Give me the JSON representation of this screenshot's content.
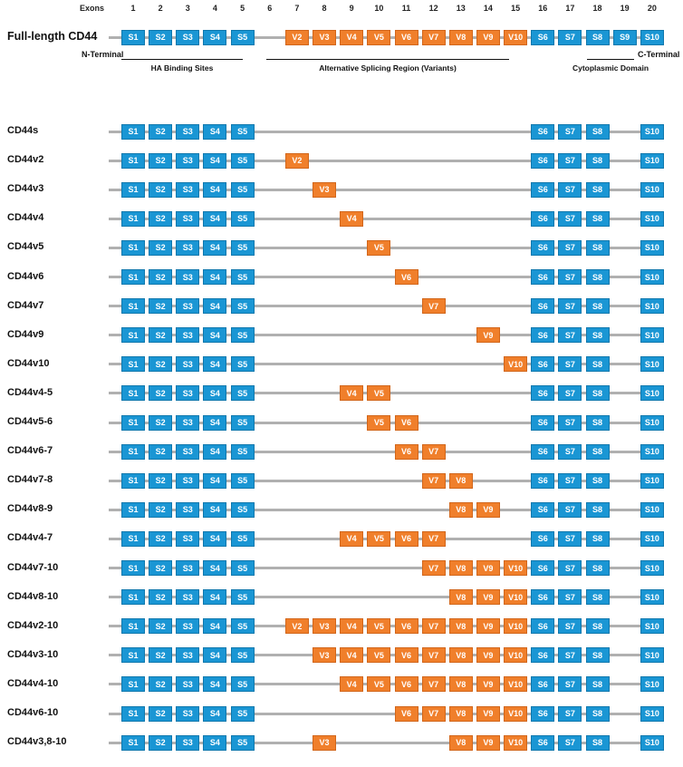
{
  "exons_label": "Exons",
  "exon_numbers": [
    "1",
    "2",
    "3",
    "4",
    "5",
    "6",
    "7",
    "8",
    "9",
    "10",
    "11",
    "12",
    "13",
    "14",
    "15",
    "16",
    "17",
    "18",
    "19",
    "20"
  ],
  "full_length": {
    "title": "Full-length CD44",
    "n_terminal": "N-Terminal",
    "c_terminal": "C-Terminal",
    "exons": [
      "S1",
      "S2",
      "S3",
      "S4",
      "S5",
      "V2",
      "V3",
      "V4",
      "V5",
      "V6",
      "V7",
      "V8",
      "V9",
      "V10",
      "S6",
      "S7",
      "S8",
      "S9",
      "S10"
    ]
  },
  "regions": {
    "ha_binding": "HA Binding Sites",
    "alt_splicing": "Alternative Splicing Region (Variants)",
    "cytoplasmic": "Cytoplasmic Domain"
  },
  "colors": {
    "standard": "#1a96d4",
    "variant": "#f07f2b",
    "track": "#b0b0b0"
  },
  "isoforms": [
    {
      "name": "CD44s",
      "exons": [
        "S1",
        "S2",
        "S3",
        "S4",
        "S5",
        "S6",
        "S7",
        "S8",
        "S10"
      ]
    },
    {
      "name": "CD44v2",
      "exons": [
        "S1",
        "S2",
        "S3",
        "S4",
        "S5",
        "V2",
        "S6",
        "S7",
        "S8",
        "S10"
      ]
    },
    {
      "name": "CD44v3",
      "exons": [
        "S1",
        "S2",
        "S3",
        "S4",
        "S5",
        "V3",
        "S6",
        "S7",
        "S8",
        "S10"
      ]
    },
    {
      "name": "CD44v4",
      "exons": [
        "S1",
        "S2",
        "S3",
        "S4",
        "S5",
        "V4",
        "S6",
        "S7",
        "S8",
        "S10"
      ]
    },
    {
      "name": "CD44v5",
      "exons": [
        "S1",
        "S2",
        "S3",
        "S4",
        "S5",
        "V5",
        "S6",
        "S7",
        "S8",
        "S10"
      ]
    },
    {
      "name": "CD44v6",
      "exons": [
        "S1",
        "S2",
        "S3",
        "S4",
        "S5",
        "V6",
        "S6",
        "S7",
        "S8",
        "S10"
      ]
    },
    {
      "name": "CD44v7",
      "exons": [
        "S1",
        "S2",
        "S3",
        "S4",
        "S5",
        "V7",
        "S6",
        "S7",
        "S8",
        "S10"
      ]
    },
    {
      "name": "CD44v9",
      "exons": [
        "S1",
        "S2",
        "S3",
        "S4",
        "S5",
        "V9",
        "S6",
        "S7",
        "S8",
        "S10"
      ]
    },
    {
      "name": "CD44v10",
      "exons": [
        "S1",
        "S2",
        "S3",
        "S4",
        "S5",
        "V10",
        "S6",
        "S7",
        "S8",
        "S10"
      ]
    },
    {
      "name": "CD44v4-5",
      "exons": [
        "S1",
        "S2",
        "S3",
        "S4",
        "S5",
        "V4",
        "V5",
        "S6",
        "S7",
        "S8",
        "S10"
      ]
    },
    {
      "name": "CD44v5-6",
      "exons": [
        "S1",
        "S2",
        "S3",
        "S4",
        "S5",
        "V5",
        "V6",
        "S6",
        "S7",
        "S8",
        "S10"
      ]
    },
    {
      "name": "CD44v6-7",
      "exons": [
        "S1",
        "S2",
        "S3",
        "S4",
        "S5",
        "V6",
        "V7",
        "S6",
        "S7",
        "S8",
        "S10"
      ]
    },
    {
      "name": "CD44v7-8",
      "exons": [
        "S1",
        "S2",
        "S3",
        "S4",
        "S5",
        "V7",
        "V8",
        "S6",
        "S7",
        "S8",
        "S10"
      ]
    },
    {
      "name": "CD44v8-9",
      "exons": [
        "S1",
        "S2",
        "S3",
        "S4",
        "S5",
        "V8",
        "V9",
        "S6",
        "S7",
        "S8",
        "S10"
      ]
    },
    {
      "name": "CD44v4-7",
      "exons": [
        "S1",
        "S2",
        "S3",
        "S4",
        "S5",
        "V4",
        "V5",
        "V6",
        "V7",
        "S6",
        "S7",
        "S8",
        "S10"
      ]
    },
    {
      "name": "CD44v7-10",
      "exons": [
        "S1",
        "S2",
        "S3",
        "S4",
        "S5",
        "V7",
        "V8",
        "V9",
        "V10",
        "S6",
        "S7",
        "S8",
        "S10"
      ]
    },
    {
      "name": "CD44v8-10",
      "exons": [
        "S1",
        "S2",
        "S3",
        "S4",
        "S5",
        "V8",
        "V9",
        "V10",
        "S6",
        "S7",
        "S8",
        "S10"
      ]
    },
    {
      "name": "CD44v2-10",
      "exons": [
        "S1",
        "S2",
        "S3",
        "S4",
        "S5",
        "V2",
        "V3",
        "V4",
        "V5",
        "V6",
        "V7",
        "V8",
        "V9",
        "V10",
        "S6",
        "S7",
        "S8",
        "S10"
      ]
    },
    {
      "name": "CD44v3-10",
      "exons": [
        "S1",
        "S2",
        "S3",
        "S4",
        "S5",
        "V3",
        "V4",
        "V5",
        "V6",
        "V7",
        "V8",
        "V9",
        "V10",
        "S6",
        "S7",
        "S8",
        "S10"
      ]
    },
    {
      "name": "CD44v4-10",
      "exons": [
        "S1",
        "S2",
        "S3",
        "S4",
        "S5",
        "V4",
        "V5",
        "V6",
        "V7",
        "V8",
        "V9",
        "V10",
        "S6",
        "S7",
        "S8",
        "S10"
      ]
    },
    {
      "name": "CD44v6-10",
      "exons": [
        "S1",
        "S2",
        "S3",
        "S4",
        "S5",
        "V6",
        "V7",
        "V8",
        "V9",
        "V10",
        "S6",
        "S7",
        "S8",
        "S10"
      ]
    },
    {
      "name": "CD44v3,8-10",
      "exons": [
        "S1",
        "S2",
        "S3",
        "S4",
        "S5",
        "V3",
        "V8",
        "V9",
        "V10",
        "S6",
        "S7",
        "S8",
        "S10"
      ]
    }
  ]
}
